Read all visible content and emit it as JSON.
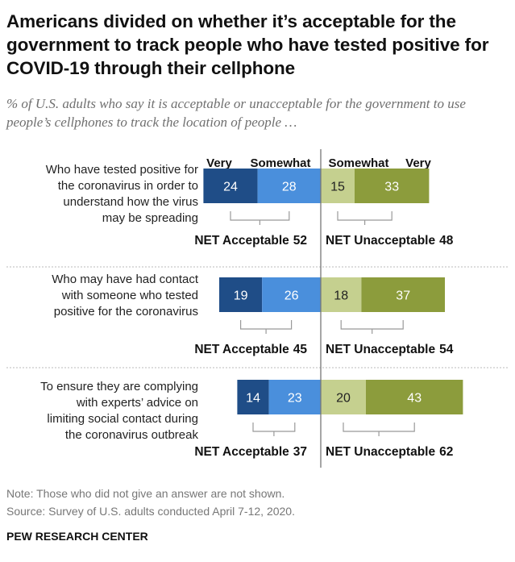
{
  "title": "Americans divided on whether it’s acceptable for the government to track people who have tested positive for COVID-19 through their cellphone",
  "subtitle": "% of U.S. adults who say it is acceptable or unacceptable for the government to use people’s cellphones to track the location of people …",
  "note": "Note: Those who did not give an answer are not shown.",
  "source": "Source: Survey of U.S. adults conducted April 7-12, 2020.",
  "brand": "PEW RESEARCH CENTER",
  "colors": {
    "very_acceptable": "#1f4d87",
    "somewhat_acceptable": "#4a8fdc",
    "somewhat_unacceptable": "#c5d08f",
    "very_unacceptable": "#8c9c3c"
  },
  "chart_data": {
    "type": "bar",
    "orientation": "horizontal diverging",
    "headers": [
      "Very",
      "Somewhat",
      "Somewhat",
      "Very"
    ],
    "categories": [
      "Who have tested positive for the coronavirus in order to understand how the virus may be spreading",
      "Who may have had contact with someone who tested positive for the coronavirus",
      "To ensure they are complying with experts’ advice on limiting social contact during the coronavirus outbreak"
    ],
    "category_lines": [
      [
        "Who have tested positive for",
        "the coronavirus in order to",
        "understand how the virus",
        "may be spreading"
      ],
      [
        "Who may have had contact",
        "with someone who tested",
        "positive for the coronavirus"
      ],
      [
        "To ensure they are complying",
        "with experts’ advice on",
        "limiting social contact during",
        "the coronavirus outbreak"
      ]
    ],
    "series": [
      {
        "name": "Very",
        "side": "acceptable",
        "values": [
          24,
          19,
          14
        ]
      },
      {
        "name": "Somewhat",
        "side": "acceptable",
        "values": [
          28,
          26,
          23
        ]
      },
      {
        "name": "Somewhat",
        "side": "unacceptable",
        "values": [
          15,
          18,
          20
        ]
      },
      {
        "name": "Very",
        "side": "unacceptable",
        "values": [
          33,
          37,
          43
        ]
      }
    ],
    "net_acceptable_label": "NET Acceptable",
    "net_unacceptable_label": "NET Unacceptable",
    "net_acceptable": [
      52,
      45,
      37
    ],
    "net_unacceptable": [
      48,
      54,
      62
    ]
  }
}
